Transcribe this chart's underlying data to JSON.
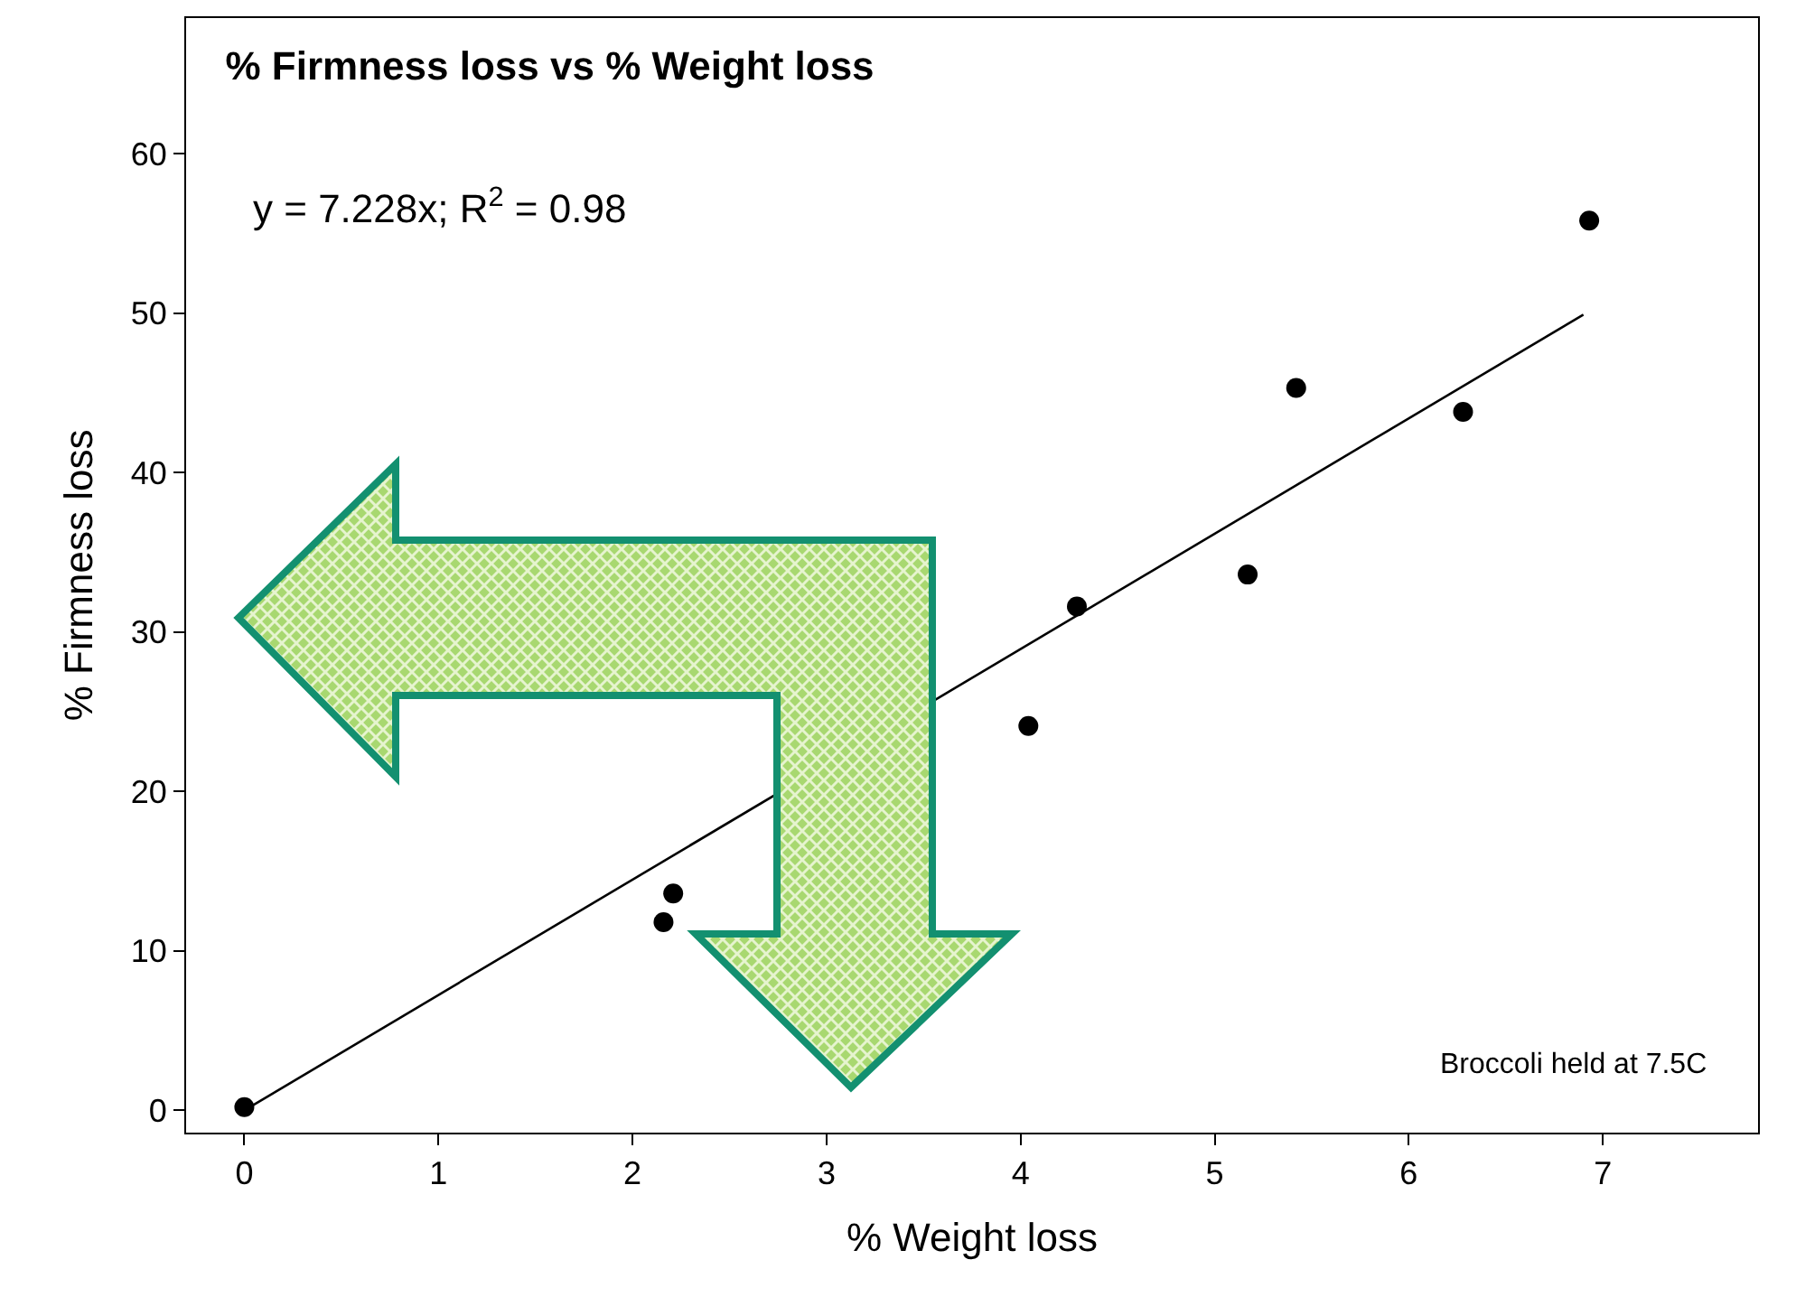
{
  "chart_data": {
    "type": "scatter",
    "title": "% Firmness loss vs % Weight loss",
    "xlabel": "% Weight loss",
    "ylabel": "% Firmness loss",
    "xlim": [
      -0.3,
      7.8
    ],
    "xticks": [
      0,
      1,
      2,
      3,
      4,
      5,
      6,
      7
    ],
    "ylim": [
      -1.4,
      68.5
    ],
    "yticks": [
      0,
      10,
      20,
      30,
      40,
      50,
      60
    ],
    "series": [
      {
        "marker": "circle",
        "color": "#000000",
        "x": [
          0,
          2.16,
          2.21,
          4.04,
          4.29,
          5.17,
          5.42,
          6.28,
          6.93
        ],
        "values": [
          0.2,
          11.8,
          13.6,
          24.1,
          31.6,
          33.6,
          45.3,
          43.8,
          55.8
        ]
      },
      {
        "type": "line",
        "line_style": "solid",
        "color": "#000000",
        "x": [
          0,
          6.9
        ],
        "values": [
          0,
          49.9
        ]
      }
    ],
    "annotations": [
      "y = 7.228x; R$^{2}$ = 0.98",
      "Broccoli held at 7.5C"
    ],
    "grid": false
  }
}
